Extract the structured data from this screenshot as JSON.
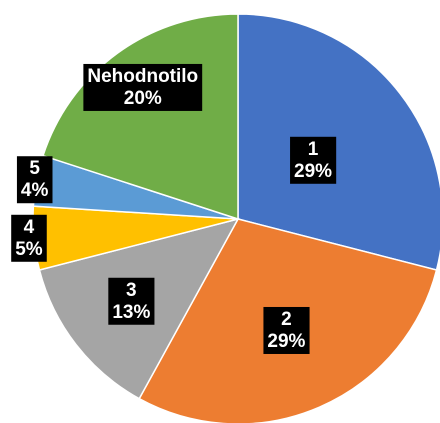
{
  "chart_data": {
    "type": "pie",
    "categories": [
      "1",
      "2",
      "3",
      "4",
      "5",
      "Nehodnotilo"
    ],
    "values": [
      29,
      29,
      13,
      5,
      4,
      20
    ],
    "value_labels": [
      "29%",
      "29%",
      "13%",
      "5%",
      "4%",
      "20%"
    ],
    "colors": [
      "#4472c4",
      "#ed7d31",
      "#a5a5a5",
      "#ffc000",
      "#5b9bd5",
      "#70ad47"
    ]
  }
}
